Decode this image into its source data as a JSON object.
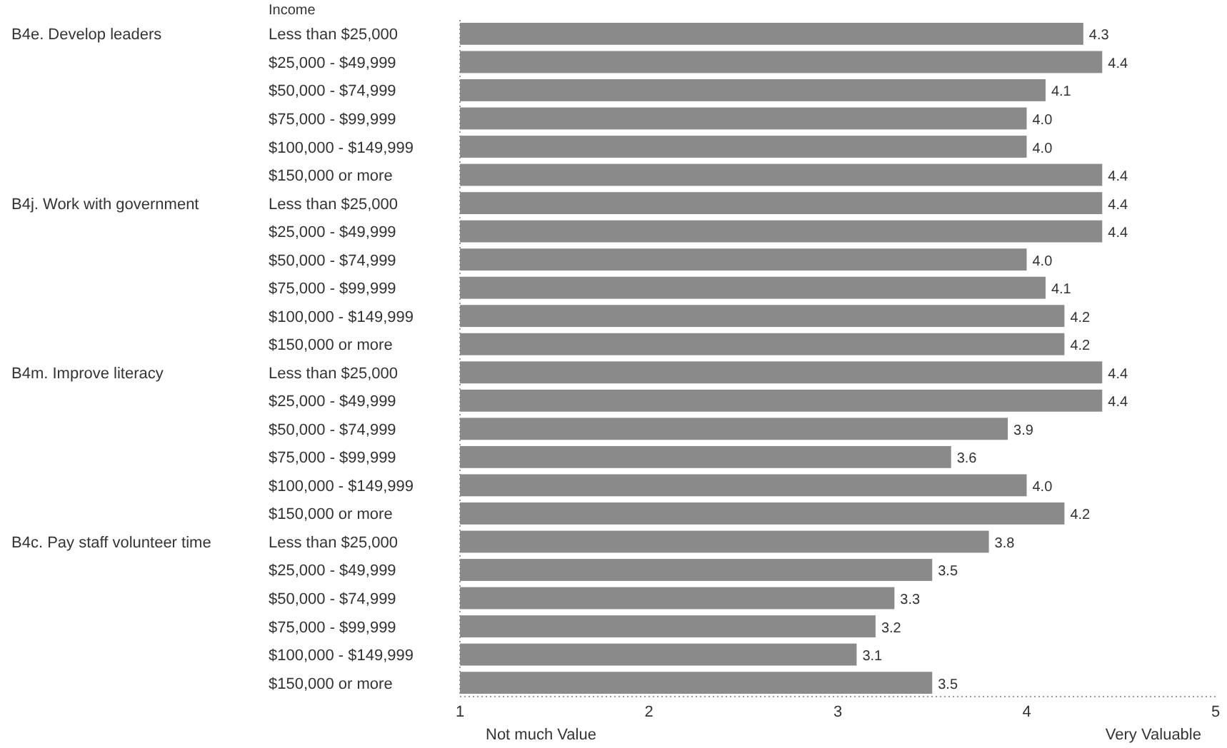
{
  "chart_data": {
    "type": "bar",
    "orientation": "horizontal",
    "ylabel": "Income",
    "categories": [
      "Less than $25,000",
      "$25,000 - $49,999",
      "$50,000 - $74,999",
      "$75,000 - $99,999",
      "$100,000 - $149,999",
      "$150,000 or more",
      "Less than $25,000",
      "$25,000 - $49,999",
      "$50,000 - $74,999",
      "$75,000 - $99,999",
      "$100,000 - $149,999",
      "$150,000 or more",
      "Less than $25,000",
      "$25,000 - $49,999",
      "$50,000 - $74,999",
      "$75,000 - $99,999",
      "$100,000 - $149,999",
      "$150,000 or more",
      "Less than $25,000",
      "$25,000 - $49,999",
      "$50,000 - $74,999",
      "$75,000 - $99,999",
      "$100,000 - $149,999",
      "$150,000 or more"
    ],
    "values": [
      4.3,
      4.4,
      4.1,
      4.0,
      4.0,
      4.4,
      4.4,
      4.4,
      4.0,
      4.1,
      4.2,
      4.2,
      4.4,
      4.4,
      3.9,
      3.6,
      4.0,
      4.2,
      3.8,
      3.5,
      3.3,
      3.2,
      3.1,
      3.5
    ],
    "value_labels": [
      "4.3",
      "4.4",
      "4.1",
      "4.0",
      "4.0",
      "4.4",
      "4.4",
      "4.4",
      "4.0",
      "4.1",
      "4.2",
      "4.2",
      "4.4",
      "4.4",
      "3.9",
      "3.6",
      "4.0",
      "4.2",
      "3.8",
      "3.5",
      "3.3",
      "3.2",
      "3.1",
      "3.5"
    ],
    "color": "#8a8a8a",
    "xlim": [
      1,
      5
    ],
    "xticks": [
      1,
      2,
      3,
      4,
      5
    ],
    "grid": false,
    "annotations": [
      "B4e. Develop leaders",
      "B4j. Work with government",
      "B4m. Improve literacy",
      "B4c. Pay staff volunteer time",
      "Not much Value",
      "Very Valuable"
    ]
  }
}
